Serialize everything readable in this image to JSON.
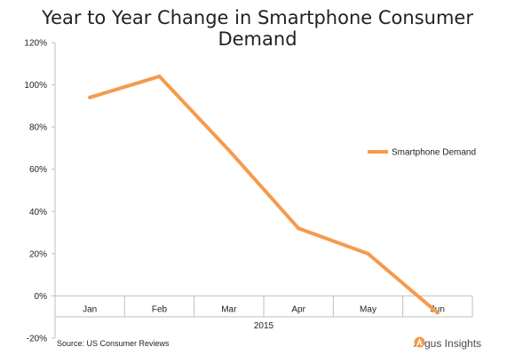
{
  "colors": {
    "series": "#F59B4C",
    "axis": "#bfbfbf",
    "text": "#222222"
  },
  "chart_data": {
    "type": "line",
    "title": "Year to Year Change in Smartphone Consumer Demand",
    "categories": [
      "Jan",
      "Feb",
      "Mar",
      "Apr",
      "May",
      "Jun"
    ],
    "x_group_label": "2015",
    "y_ticks": [
      "120%",
      "100%",
      "80%",
      "60%",
      "40%",
      "20%",
      "0%",
      "-20%"
    ],
    "ylim": [
      -20,
      120
    ],
    "grid": false,
    "legend_position": "right",
    "series": [
      {
        "name": "Smartphone Demand",
        "values": [
          94,
          104,
          69,
          32,
          20,
          -8
        ]
      }
    ]
  },
  "footer": {
    "source": "Source: US Consumer Reviews",
    "brand": "Argus Insights",
    "brand_icon": "argus-logo-icon"
  }
}
